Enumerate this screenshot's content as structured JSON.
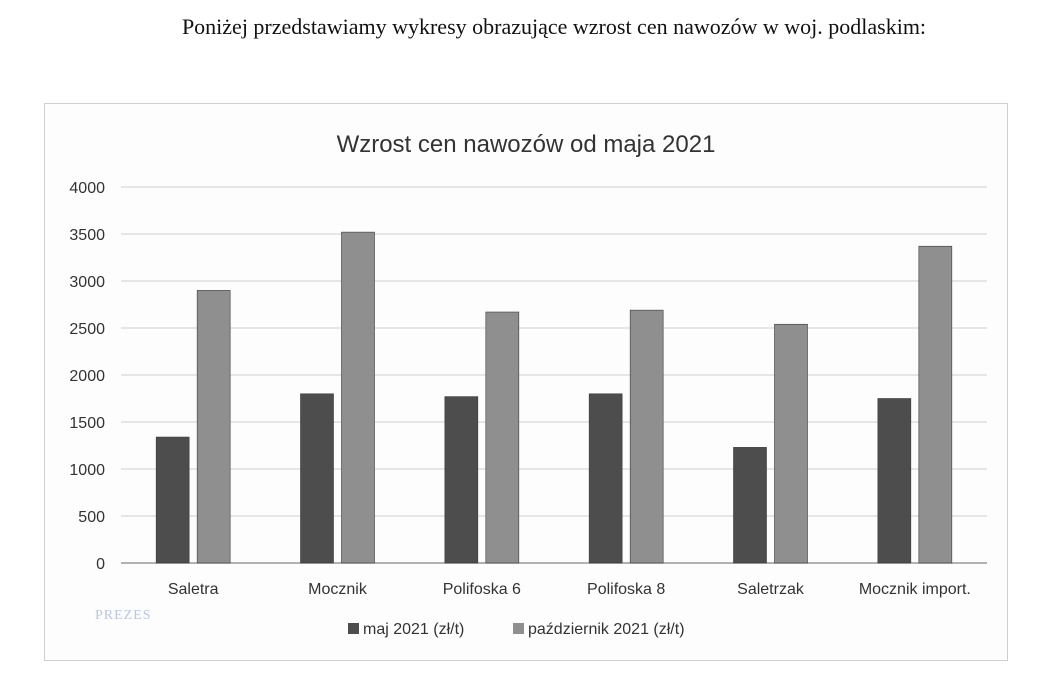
{
  "page": {
    "intro_text": "Poniżej przedstawiamy wykresy obrazujące wzrost cen nawozów w woj. podlaskim:",
    "stamp_text": "PREZES"
  },
  "chart_data": {
    "type": "bar",
    "title": "Wzrost cen nawozów od maja 2021",
    "xlabel": "",
    "ylabel": "",
    "categories": [
      "Saletra",
      "Mocznik",
      "Polifoska 6",
      "Polifoska 8",
      "Saletrzak",
      "Mocznik import."
    ],
    "series": [
      {
        "name": "maj 2021 (zł/t)",
        "color": "#4d4d4d",
        "values": [
          1340,
          1800,
          1770,
          1800,
          1230,
          1750
        ]
      },
      {
        "name": "październik 2021 (zł/t)",
        "color": "#8f8f8f",
        "values": [
          2900,
          3520,
          2670,
          2690,
          2540,
          3370
        ]
      }
    ],
    "ylim": [
      0,
      4000
    ],
    "yticks": [
      0,
      500,
      1000,
      1500,
      2000,
      2500,
      3000,
      3500,
      4000
    ],
    "grid": true,
    "legend_position": "bottom"
  }
}
